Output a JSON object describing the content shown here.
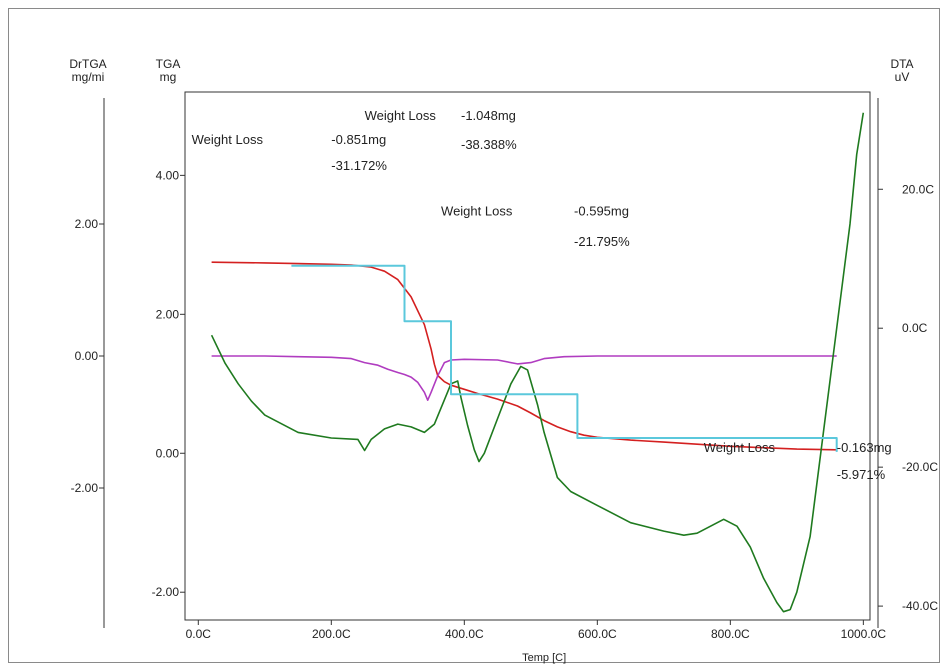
{
  "chart_data": {
    "type": "line",
    "x_label": "Temp  [C]",
    "x_range": [
      -20,
      1010
    ],
    "x_ticks": [
      {
        "value": 0,
        "label": "0.0C"
      },
      {
        "value": 200,
        "label": "200.0C"
      },
      {
        "value": 400,
        "label": "400.0C"
      },
      {
        "value": 600,
        "label": "600.0C"
      },
      {
        "value": 800,
        "label": "800.0C"
      },
      {
        "value": 1000,
        "label": "1000.0C"
      }
    ],
    "axes": {
      "drtga": {
        "title_lines": [
          "DrTGA",
          "mg/mi"
        ],
        "range": [
          -4.0,
          4.0
        ],
        "ticks": [
          {
            "value": 2,
            "label": "2.00"
          },
          {
            "value": 0,
            "label": "0.00"
          },
          {
            "value": -2,
            "label": "-2.00"
          }
        ]
      },
      "tga": {
        "title_lines": [
          "TGA",
          "mg"
        ],
        "range": [
          -2.4,
          5.2
        ],
        "ticks": [
          {
            "value": 4,
            "label": "4.00"
          },
          {
            "value": 2,
            "label": "2.00"
          },
          {
            "value": 0,
            "label": "0.00"
          },
          {
            "value": -2,
            "label": "-2.00"
          }
        ]
      },
      "dta": {
        "title_lines": [
          "DTA",
          "uV"
        ],
        "range": [
          -42,
          34
        ],
        "ticks": [
          {
            "value": 20,
            "label": "20.0C"
          },
          {
            "value": 0,
            "label": "0.0C"
          },
          {
            "value": -20,
            "label": "-20.0C"
          },
          {
            "value": -40,
            "label": "-40.0C"
          }
        ]
      }
    },
    "series": [
      {
        "key": "tga",
        "axis": "tga",
        "color": "#d42020",
        "points": [
          [
            20,
            2.75
          ],
          [
            100,
            2.74
          ],
          [
            150,
            2.73
          ],
          [
            200,
            2.72
          ],
          [
            230,
            2.71
          ],
          [
            260,
            2.68
          ],
          [
            280,
            2.62
          ],
          [
            300,
            2.5
          ],
          [
            320,
            2.25
          ],
          [
            340,
            1.85
          ],
          [
            350,
            1.5
          ],
          [
            355,
            1.28
          ],
          [
            360,
            1.12
          ],
          [
            370,
            1.03
          ],
          [
            380,
            0.98
          ],
          [
            400,
            0.92
          ],
          [
            420,
            0.86
          ],
          [
            450,
            0.78
          ],
          [
            480,
            0.68
          ],
          [
            500,
            0.58
          ],
          [
            520,
            0.47
          ],
          [
            540,
            0.38
          ],
          [
            560,
            0.31
          ],
          [
            580,
            0.26
          ],
          [
            600,
            0.23
          ],
          [
            650,
            0.19
          ],
          [
            700,
            0.16
          ],
          [
            750,
            0.13
          ],
          [
            800,
            0.1
          ],
          [
            850,
            0.08
          ],
          [
            900,
            0.06
          ],
          [
            960,
            0.05
          ]
        ]
      },
      {
        "key": "drtga",
        "axis": "drtga",
        "color": "#b03cc0",
        "points": [
          [
            20,
            0.0
          ],
          [
            100,
            0.0
          ],
          [
            150,
            -0.01
          ],
          [
            200,
            -0.02
          ],
          [
            230,
            -0.04
          ],
          [
            250,
            -0.1
          ],
          [
            270,
            -0.14
          ],
          [
            285,
            -0.2
          ],
          [
            300,
            -0.25
          ],
          [
            310,
            -0.28
          ],
          [
            320,
            -0.32
          ],
          [
            330,
            -0.4
          ],
          [
            340,
            -0.55
          ],
          [
            345,
            -0.67
          ],
          [
            350,
            -0.55
          ],
          [
            360,
            -0.3
          ],
          [
            370,
            -0.1
          ],
          [
            380,
            -0.06
          ],
          [
            400,
            -0.05
          ],
          [
            450,
            -0.06
          ],
          [
            480,
            -0.12
          ],
          [
            500,
            -0.1
          ],
          [
            520,
            -0.04
          ],
          [
            550,
            -0.01
          ],
          [
            600,
            0.0
          ],
          [
            700,
            0.0
          ],
          [
            800,
            0.0
          ],
          [
            900,
            0.0
          ],
          [
            960,
            0.0
          ]
        ]
      },
      {
        "key": "dta",
        "axis": "dta",
        "color": "#1f7a1f",
        "points": [
          [
            20,
            -1.0
          ],
          [
            40,
            -5.0
          ],
          [
            60,
            -8.0
          ],
          [
            80,
            -10.5
          ],
          [
            100,
            -12.5
          ],
          [
            150,
            -15.0
          ],
          [
            200,
            -15.8
          ],
          [
            240,
            -16.0
          ],
          [
            250,
            -17.6
          ],
          [
            260,
            -16.0
          ],
          [
            280,
            -14.5
          ],
          [
            300,
            -13.8
          ],
          [
            320,
            -14.2
          ],
          [
            340,
            -15.0
          ],
          [
            355,
            -13.8
          ],
          [
            365,
            -11.5
          ],
          [
            380,
            -8.0
          ],
          [
            390,
            -7.6
          ],
          [
            395,
            -10.0
          ],
          [
            405,
            -14.0
          ],
          [
            415,
            -17.5
          ],
          [
            422,
            -19.2
          ],
          [
            430,
            -18.0
          ],
          [
            450,
            -13.0
          ],
          [
            470,
            -8.0
          ],
          [
            485,
            -5.5
          ],
          [
            495,
            -6.0
          ],
          [
            510,
            -11.0
          ],
          [
            520,
            -15.0
          ],
          [
            540,
            -21.5
          ],
          [
            560,
            -23.5
          ],
          [
            600,
            -25.5
          ],
          [
            650,
            -28.0
          ],
          [
            700,
            -29.2
          ],
          [
            730,
            -29.8
          ],
          [
            750,
            -29.5
          ],
          [
            790,
            -27.5
          ],
          [
            810,
            -28.5
          ],
          [
            830,
            -31.5
          ],
          [
            850,
            -36.0
          ],
          [
            870,
            -39.5
          ],
          [
            880,
            -40.8
          ],
          [
            890,
            -40.5
          ],
          [
            900,
            -38.0
          ],
          [
            920,
            -30.0
          ],
          [
            940,
            -15.0
          ],
          [
            960,
            0.0
          ],
          [
            980,
            15.0
          ],
          [
            990,
            25.0
          ],
          [
            1000,
            31.0
          ]
        ]
      },
      {
        "key": "steps",
        "axis": "tga",
        "color": "#5bc8dc",
        "points": [
          [
            140,
            2.7
          ],
          [
            310,
            2.7
          ],
          [
            310,
            1.9
          ],
          [
            380,
            1.9
          ],
          [
            380,
            0.85
          ],
          [
            570,
            0.85
          ],
          [
            570,
            0.22
          ],
          [
            960,
            0.22
          ],
          [
            960,
            0.02
          ]
        ]
      }
    ],
    "annotations": [
      {
        "text": "Weight Loss",
        "x": 250,
        "y": 4.8
      },
      {
        "text": "-1.048mg",
        "x": 395,
        "y": 4.8
      },
      {
        "text": "Weight Loss",
        "x": -10,
        "y": 4.45
      },
      {
        "text": "-0.851mg",
        "x": 200,
        "y": 4.45
      },
      {
        "text": "-38.388%",
        "x": 395,
        "y": 4.38
      },
      {
        "text": "-31.172%",
        "x": 200,
        "y": 4.08
      },
      {
        "text": "Weight Loss",
        "x": 365,
        "y": 3.42
      },
      {
        "text": "-0.595mg",
        "x": 565,
        "y": 3.42
      },
      {
        "text": "-21.795%",
        "x": 565,
        "y": 2.98
      },
      {
        "text": "Weight Loss",
        "x": 760,
        "y": 0.02
      },
      {
        "text": "-0.163mg",
        "x": 960,
        "y": 0.02
      },
      {
        "text": "-5.971%",
        "x": 960,
        "y": -0.37
      }
    ]
  }
}
